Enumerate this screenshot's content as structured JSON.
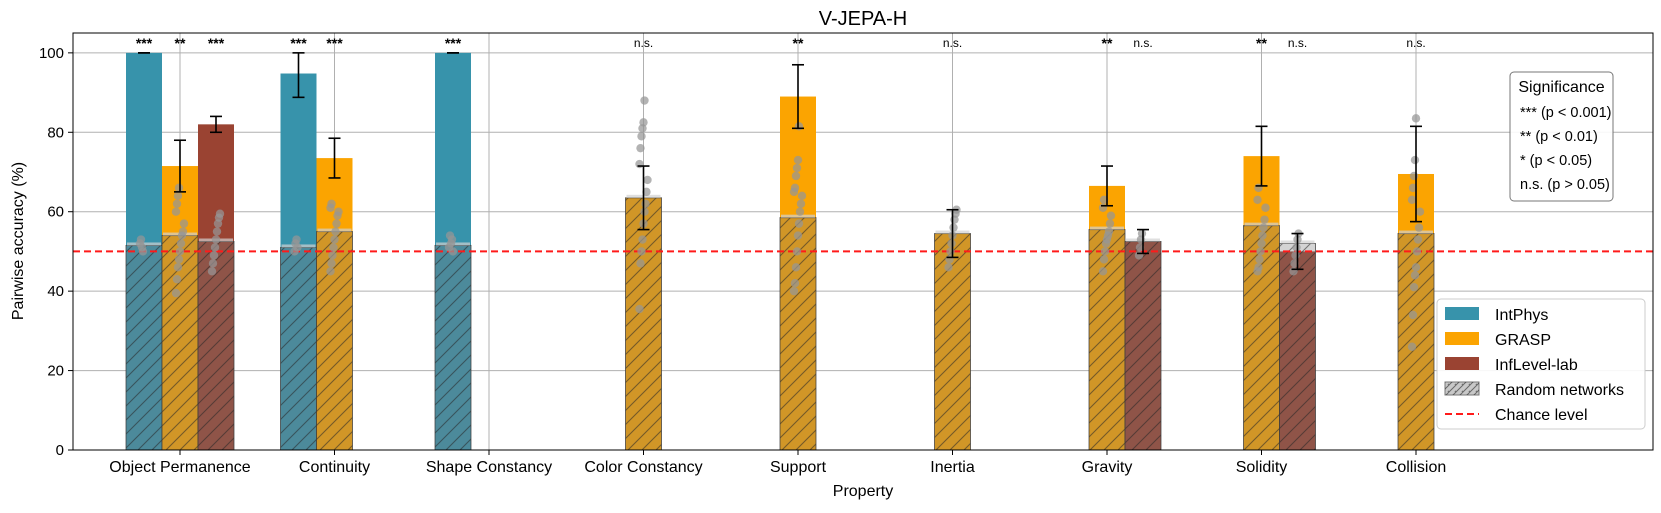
{
  "chart_data": {
    "type": "bar",
    "title": "V-JEPA-H",
    "xlabel": "Property",
    "ylabel": "Pairwise accuracy (%)",
    "ylim": [
      0,
      105
    ],
    "yticks": [
      0,
      20,
      40,
      60,
      80,
      100
    ],
    "grid": true,
    "chance_level": 50,
    "categories": [
      "Object Permanence",
      "Continuity",
      "Shape Constancy",
      "Color Constancy",
      "Support",
      "Inertia",
      "Gravity",
      "Solidity",
      "Collision"
    ],
    "series": [
      {
        "name": "IntPhys",
        "color": "#3793ab",
        "values": [
          100,
          94.8,
          100,
          null,
          null,
          null,
          null,
          null,
          null
        ],
        "err": [
          0,
          6,
          0,
          null,
          null,
          null,
          null,
          null,
          null
        ],
        "random": [
          51.5,
          51,
          51.5,
          null,
          null,
          null,
          null,
          null,
          null
        ],
        "sig": [
          "***",
          "***",
          "***",
          null,
          null,
          null,
          null,
          null,
          null
        ],
        "points": [
          [
            52,
            53,
            51,
            50
          ],
          [
            50,
            52,
            53,
            51
          ],
          [
            51,
            54,
            52,
            53,
            50
          ],
          [],
          [],
          [],
          [],
          [],
          []
        ]
      },
      {
        "name": "GRASP",
        "color": "#fba401",
        "values": [
          71.5,
          73.5,
          null,
          63.5,
          89,
          54.5,
          66.5,
          74,
          69.5
        ],
        "err": [
          6.5,
          5,
          null,
          8,
          8,
          6,
          5,
          7.5,
          12
        ],
        "random": [
          54,
          55,
          null,
          63.5,
          58.5,
          54.5,
          55.5,
          56.5,
          54.5
        ],
        "sig": [
          "**",
          "***",
          null,
          "n.s.",
          "**",
          "n.s.",
          "**",
          "**",
          "n.s."
        ],
        "points": [
          [
            39.5,
            43,
            46,
            48,
            50,
            52,
            54,
            55,
            57,
            60,
            62,
            64,
            66
          ],
          [
            45,
            47,
            49,
            51,
            53,
            55,
            57,
            59,
            60,
            61,
            62
          ],
          [],
          [
            35.5,
            47,
            50,
            53,
            57,
            60,
            62,
            65,
            68,
            72,
            76,
            79,
            81,
            82.5,
            88
          ],
          [
            40,
            42,
            46,
            50,
            54,
            57,
            60,
            62,
            64,
            65,
            66,
            69,
            71,
            73,
            81.5
          ],
          [
            46,
            48,
            50,
            52,
            54,
            56,
            58,
            59.5,
            60.5
          ],
          [
            45,
            48,
            50,
            52,
            53,
            54,
            55,
            57,
            59,
            61,
            63
          ],
          [
            45,
            46,
            48,
            50,
            52,
            54,
            56,
            58,
            61,
            63,
            66
          ],
          [
            26,
            34,
            41,
            44,
            46,
            50,
            53,
            56,
            60,
            63,
            66,
            69,
            73,
            83.5
          ]
        ]
      },
      {
        "name": "InfLevel-lab",
        "color": "#9a4332",
        "values": [
          82,
          null,
          null,
          null,
          null,
          null,
          52.5,
          50,
          null
        ],
        "err": [
          2,
          null,
          null,
          null,
          null,
          null,
          3,
          4.5,
          null
        ],
        "random": [
          52.5,
          null,
          null,
          null,
          null,
          null,
          52.5,
          52,
          null
        ],
        "sig": [
          "***",
          null,
          null,
          null,
          null,
          null,
          "n.s.",
          "n.s.",
          null
        ],
        "points": [
          [
            45,
            47,
            49,
            51,
            53,
            55,
            57,
            58.5,
            59.5
          ],
          [],
          [],
          [],
          [],
          [],
          [
            49,
            51,
            53,
            54.5
          ],
          [
            45,
            47,
            49,
            51,
            53,
            54.5
          ],
          []
        ]
      }
    ],
    "legend": {
      "placement": "right",
      "entries": [
        {
          "label": "IntPhys",
          "color": "#3793ab",
          "kind": "bar"
        },
        {
          "label": "GRASP",
          "color": "#fba401",
          "kind": "bar"
        },
        {
          "label": "InfLevel-lab",
          "color": "#9a4332",
          "kind": "bar"
        },
        {
          "label": "Random networks",
          "color": "#c8c8c8",
          "kind": "hatch"
        },
        {
          "label": "Chance level",
          "color": "#ff1a1a",
          "kind": "dash"
        }
      ]
    },
    "significance_legend": {
      "title": "Significance",
      "entries": [
        "*** (p < 0.001)",
        "** (p < 0.01)",
        "* (p < 0.05)",
        "n.s. (p > 0.05)"
      ]
    }
  }
}
